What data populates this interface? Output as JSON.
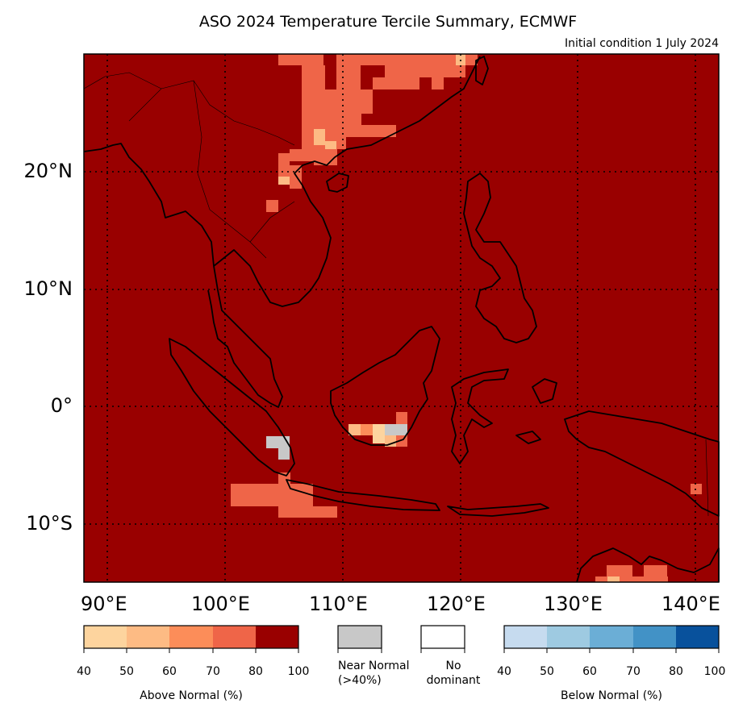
{
  "title": "ASO 2024 Temperature Tercile Summary, ECMWF",
  "subtitle": "Initial condition 1 July 2024",
  "map": {
    "lon_range": [
      88,
      142
    ],
    "lat_range": [
      -15,
      30
    ],
    "lat_ticks": [
      "20°N",
      "10°N",
      "0°",
      "10°S"
    ],
    "lon_ticks": [
      "90°E",
      "100°E",
      "110°E",
      "120°E",
      "130°E",
      "140°E"
    ],
    "background_category": "Above Normal 80-100%",
    "colors": {
      "above_40_50": "#fdd49e",
      "above_50_60": "#fdbb84",
      "above_60_70": "#fc8d59",
      "above_70_80": "#ef6548",
      "above_80_100": "#990000",
      "near_normal": "#c8c8c8",
      "no_dominant": "#ffffff",
      "below_40_50": "#c6dbef",
      "below_50_60": "#9ecae1",
      "below_60_70": "#6baed6",
      "below_70_80": "#4292c6",
      "below_80_100": "#08519c",
      "coastline": "#000000"
    }
  },
  "legend": {
    "above": {
      "label": "Above Normal (%)",
      "ticks": [
        "40",
        "50",
        "60",
        "70",
        "80",
        "100"
      ]
    },
    "near_normal": {
      "label_line1": "Near Normal",
      "label_line2": "(>40%)"
    },
    "no_dominant": {
      "label_line1": "No",
      "label_line2": "dominant"
    },
    "below": {
      "label": "Below Normal (%)",
      "ticks": [
        "40",
        "50",
        "60",
        "70",
        "80",
        "100"
      ]
    }
  }
}
